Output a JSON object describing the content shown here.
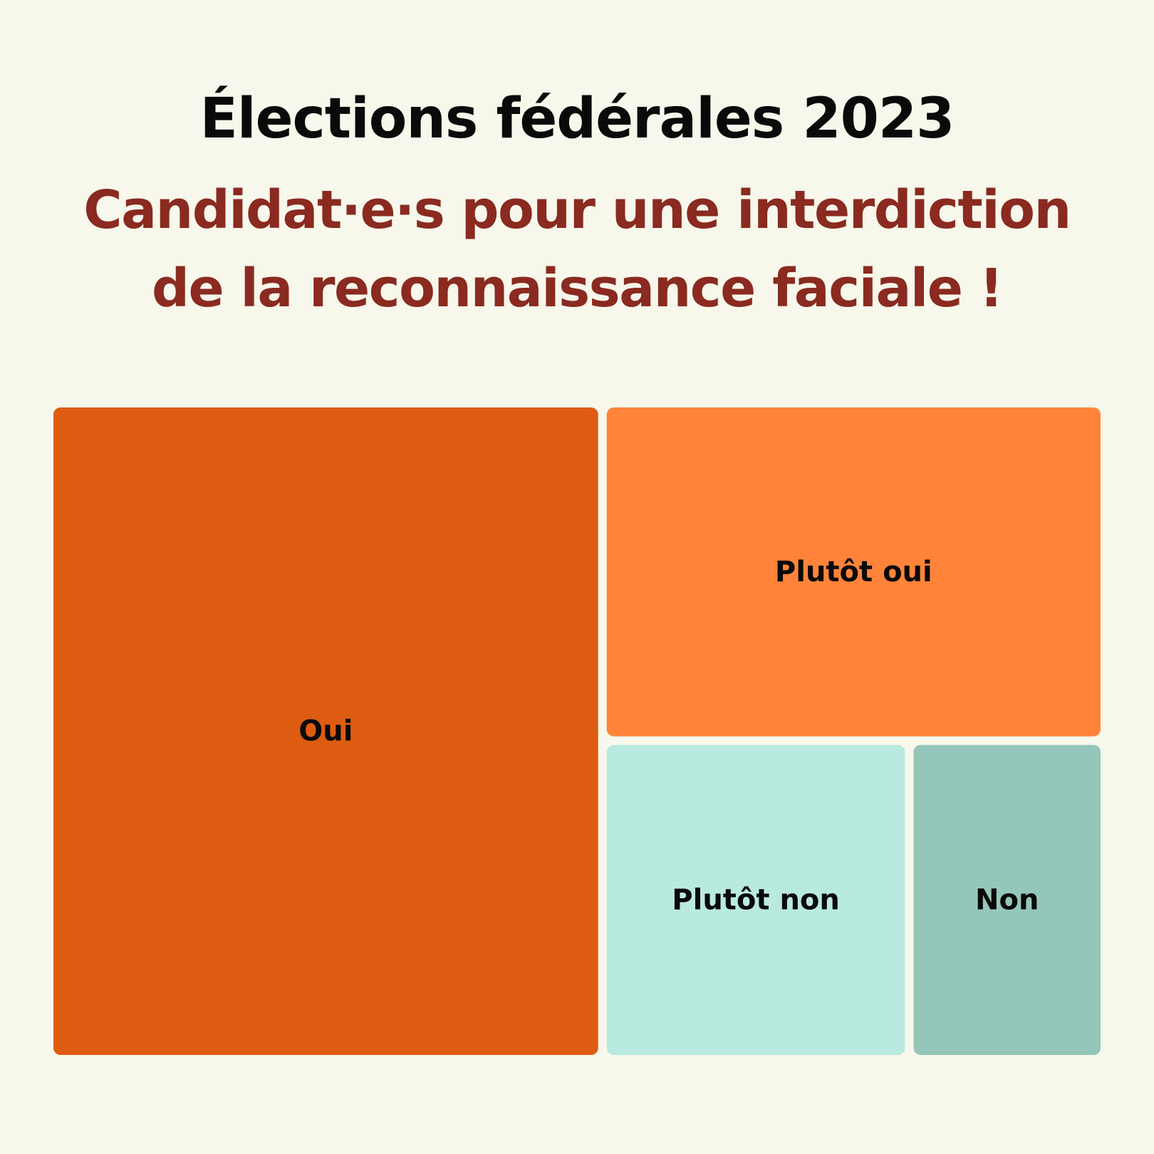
{
  "chart_data": {
    "type": "treemap",
    "title": "Élections fédérales 2023",
    "subtitle_lines": [
      "Candidat·e·s pour une interdiction",
      "de la reconnaissance faciale !"
    ],
    "categories": [
      "Oui",
      "Plutôt oui",
      "Plutôt non",
      "Non"
    ],
    "values": [
      52.5,
      24.5,
      14.2,
      8.9
    ],
    "colors": [
      "#dd5c11",
      "#ff8439",
      "#b9eadf",
      "#95c6ba"
    ],
    "legend": "none"
  }
}
